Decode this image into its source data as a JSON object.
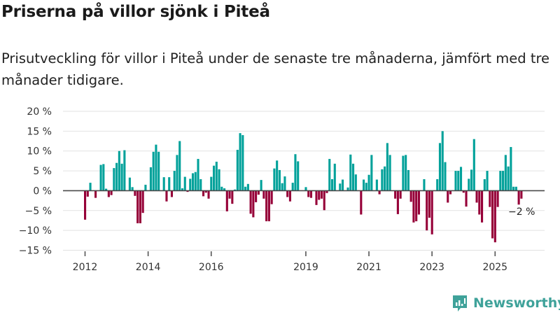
{
  "title": "Priserna på villor sjönk i Piteå",
  "subtitle": "Prisutveckling för villor i Piteå under de senaste tre månaderna, jämfört med tre månader tidigare.",
  "brand": {
    "name": "Newsworthy",
    "icon": "bar-chart-speech-bubble-icon",
    "color": "#3fa29a"
  },
  "chart_data": {
    "type": "bar",
    "title": "Priserna på villor sjönk i Piteå",
    "xlabel": "",
    "ylabel": "",
    "ylim": [
      -15,
      20
    ],
    "yticks": [
      20,
      15,
      10,
      5,
      0,
      -5,
      -10,
      -15
    ],
    "ytick_labels": [
      "20 %",
      "15 %",
      "10 %",
      "5 %",
      "0 %",
      "−5 %",
      "−10 %",
      "−15 %"
    ],
    "xtick_years": [
      2012,
      2014,
      2016,
      2019,
      2021,
      2023,
      2025
    ],
    "xtick_labels": [
      "2012",
      "2014",
      "2016",
      "2019",
      "2021",
      "2023",
      "2025"
    ],
    "grid": true,
    "start": "2012-01",
    "x_unit": "month",
    "colors": {
      "positive": "#00a19a",
      "negative": "#960038",
      "zero_line": "#4a4a4a",
      "grid": "#e2e2e2"
    },
    "values": [
      -7.3,
      -1.5,
      2.0,
      null,
      -1.8,
      null,
      6.5,
      6.7,
      0.5,
      -1.6,
      -1.1,
      5.7,
      7.0,
      10.0,
      6.8,
      10.2,
      null,
      3.3,
      0.9,
      -1.3,
      -8.2,
      -8.2,
      -5.6,
      1.5,
      null,
      5.9,
      9.8,
      11.6,
      9.8,
      null,
      3.4,
      -2.7,
      3.4,
      -1.6,
      5.0,
      9.0,
      12.5,
      0.6,
      3.5,
      -0.3,
      3.0,
      4.4,
      4.7,
      8.0,
      2.9,
      -1.4,
      -0.5,
      -2.0,
      3.5,
      6.3,
      7.3,
      5.4,
      1.0,
      0.6,
      -5.2,
      -2.0,
      -3.3,
      0.3,
      10.3,
      14.5,
      14.0,
      1.0,
      1.7,
      -5.8,
      -6.7,
      -2.9,
      -1.0,
      2.7,
      -2.0,
      -7.7,
      -7.7,
      -3.4,
      5.6,
      7.6,
      5.2,
      1.9,
      3.6,
      -1.6,
      -2.7,
      2.0,
      9.2,
      7.4,
      null,
      null,
      0.9,
      -1.6,
      -1.8,
      null,
      -3.6,
      -2.3,
      -2.0,
      -4.9,
      -0.6,
      8.0,
      2.9,
      6.8,
      null,
      1.8,
      2.8,
      null,
      0.8,
      9.1,
      6.8,
      4.1,
      null,
      -6.0,
      2.8,
      2.0,
      4.0,
      9.0,
      null,
      2.8,
      -0.9,
      5.4,
      6.1,
      12.0,
      9.0,
      null,
      -2.0,
      -5.9,
      -2.0,
      8.8,
      9.0,
      5.2,
      -2.8,
      -8.0,
      -7.7,
      -6.0,
      null,
      2.9,
      -10.0,
      -6.8,
      -11.0,
      null,
      2.9,
      12.0,
      15.0,
      7.2,
      -3.0,
      -0.9,
      null,
      5.0,
      5.0,
      6.0,
      -0.5,
      -4.0,
      3.0,
      5.3,
      13.0,
      -3.0,
      -6.0,
      -8.0,
      2.9,
      5.0,
      -4.1,
      -12.0,
      -13.0,
      -4.1,
      5.0,
      5.0,
      9.0,
      6.1,
      11.0,
      1.0,
      1.0,
      -3.5,
      -2.0
    ],
    "annotations": [
      {
        "label": "−2 %",
        "at": "last"
      }
    ]
  }
}
